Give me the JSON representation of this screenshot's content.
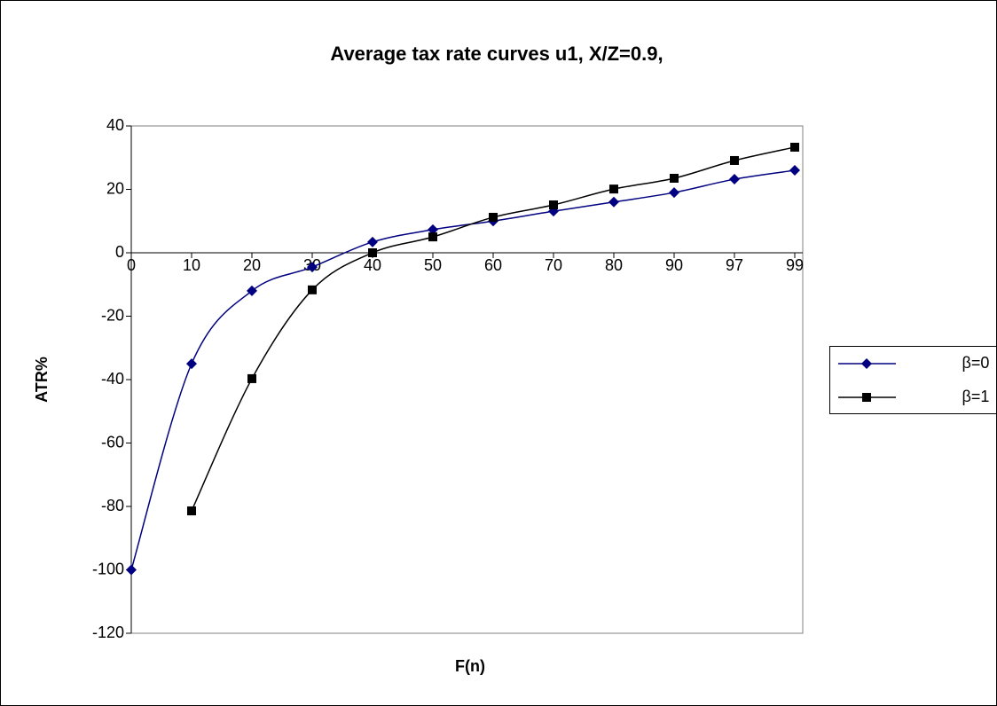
{
  "chart_data": {
    "type": "line",
    "title": "Average tax rate curves u1, X/Z=0.9,",
    "x_label": "F(n)",
    "y_label": "ATR%",
    "categories": [
      "0",
      "10",
      "20",
      "30",
      "40",
      "50",
      "60",
      "70",
      "80",
      "90",
      "97",
      "99"
    ],
    "series": [
      {
        "name": "β=0",
        "color": "#000080",
        "marker": "diamond",
        "values": [
          -100,
          -35,
          -12,
          -4.5,
          3.4,
          7.3,
          10,
          13.1,
          16,
          19,
          23.2,
          26
        ]
      },
      {
        "name": "β=1",
        "color": "#000000",
        "marker": "square",
        "values": [
          null,
          -81.4,
          -39.7,
          -11.7,
          0,
          5,
          11.2,
          15.1,
          20.1,
          23.5,
          29.1,
          33.3
        ]
      }
    ],
    "ylim": [
      -120,
      40
    ],
    "yticks": [
      -120,
      -100,
      -80,
      -60,
      -40,
      -20,
      0,
      20,
      40
    ],
    "grid": false,
    "legend": "right"
  }
}
